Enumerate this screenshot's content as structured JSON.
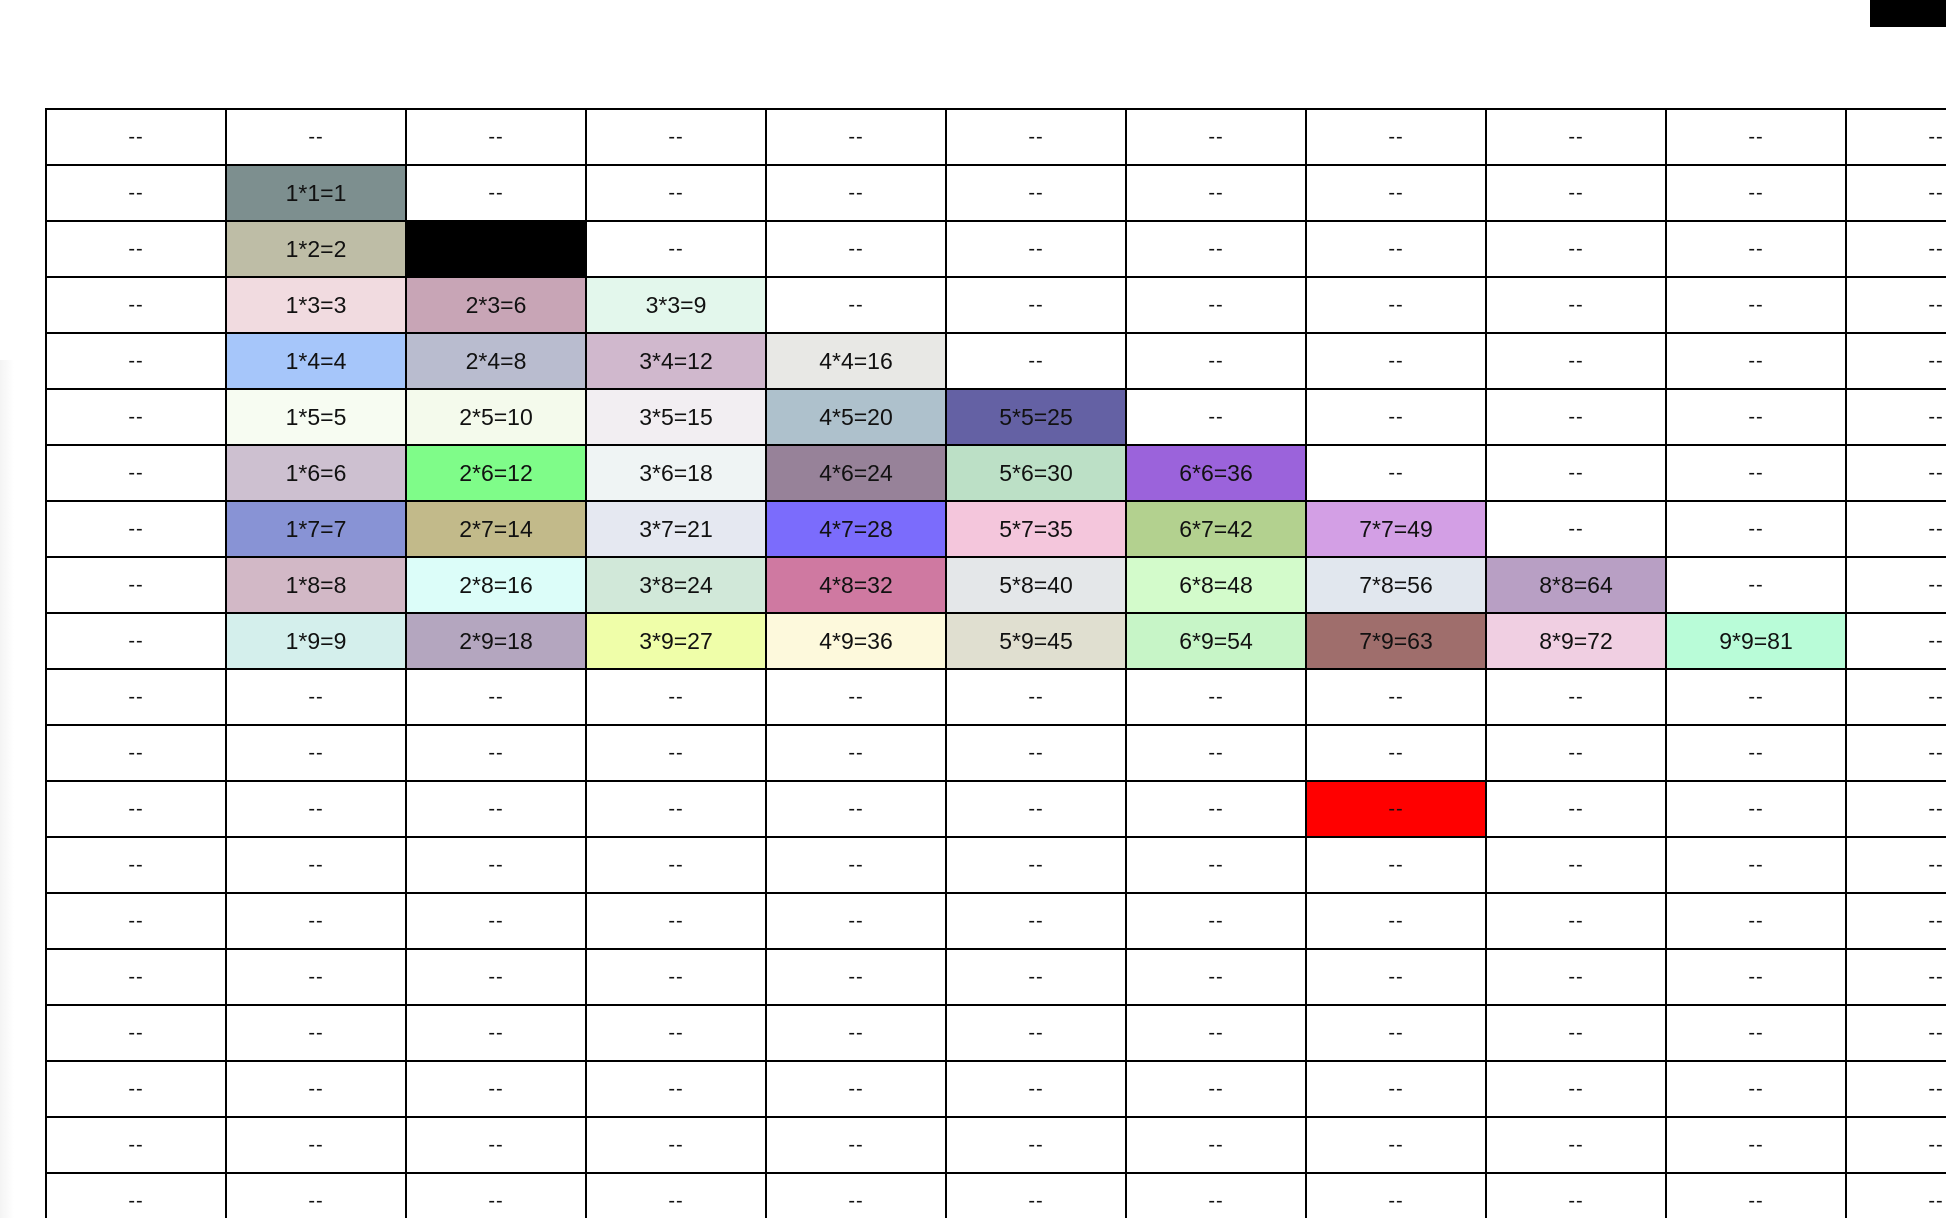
{
  "table": {
    "rows": [
      {
        "cells": [
          {
            "text": "--"
          },
          {
            "text": "--"
          },
          {
            "text": "--"
          },
          {
            "text": "--"
          },
          {
            "text": "--"
          },
          {
            "text": "--"
          },
          {
            "text": "--"
          },
          {
            "text": "--"
          },
          {
            "text": "--"
          },
          {
            "text": "--"
          },
          {
            "text": "--"
          }
        ]
      },
      {
        "cells": [
          {
            "text": "--"
          },
          {
            "text": "1*1=1",
            "color": "#7d8f8f"
          },
          {
            "text": "--"
          },
          {
            "text": "--"
          },
          {
            "text": "--"
          },
          {
            "text": "--"
          },
          {
            "text": "--"
          },
          {
            "text": "--"
          },
          {
            "text": "--"
          },
          {
            "text": "--"
          },
          {
            "text": "--"
          }
        ]
      },
      {
        "cells": [
          {
            "text": "--"
          },
          {
            "text": "1*2=2",
            "color": "#bebda6"
          },
          {
            "text": "",
            "color": "#000000"
          },
          {
            "text": "--"
          },
          {
            "text": "--"
          },
          {
            "text": "--"
          },
          {
            "text": "--"
          },
          {
            "text": "--"
          },
          {
            "text": "--"
          },
          {
            "text": "--"
          },
          {
            "text": "--"
          }
        ]
      },
      {
        "cells": [
          {
            "text": "--"
          },
          {
            "text": "1*3=3",
            "color": "#f1dbe0"
          },
          {
            "text": "2*3=6",
            "color": "#c8a5b6"
          },
          {
            "text": "3*3=9",
            "color": "#e3f7ec"
          },
          {
            "text": "--"
          },
          {
            "text": "--"
          },
          {
            "text": "--"
          },
          {
            "text": "--"
          },
          {
            "text": "--"
          },
          {
            "text": "--"
          },
          {
            "text": "--"
          }
        ]
      },
      {
        "cells": [
          {
            "text": "--"
          },
          {
            "text": "1*4=4",
            "color": "#a6c6fa"
          },
          {
            "text": "2*4=8",
            "color": "#b9bccf"
          },
          {
            "text": "3*4=12",
            "color": "#d0b8cd"
          },
          {
            "text": "4*4=16",
            "color": "#e8e8e5"
          },
          {
            "text": "--"
          },
          {
            "text": "--"
          },
          {
            "text": "--"
          },
          {
            "text": "--"
          },
          {
            "text": "--"
          },
          {
            "text": "--"
          }
        ]
      },
      {
        "cells": [
          {
            "text": "--"
          },
          {
            "text": "1*5=5",
            "color": "#f7fcf2"
          },
          {
            "text": "2*5=10",
            "color": "#f4faec"
          },
          {
            "text": "3*5=15",
            "color": "#f2eef2"
          },
          {
            "text": "4*5=20",
            "color": "#aec1cc"
          },
          {
            "text": "5*5=25",
            "color": "#6461a4"
          },
          {
            "text": "--"
          },
          {
            "text": "--"
          },
          {
            "text": "--"
          },
          {
            "text": "--"
          },
          {
            "text": "--"
          }
        ]
      },
      {
        "cells": [
          {
            "text": "--"
          },
          {
            "text": "1*6=6",
            "color": "#cdc0d0"
          },
          {
            "text": "2*6=12",
            "color": "#7ffc89"
          },
          {
            "text": "3*6=18",
            "color": "#eff4f4"
          },
          {
            "text": "4*6=24",
            "color": "#978299"
          },
          {
            "text": "5*6=30",
            "color": "#bce0c6"
          },
          {
            "text": "6*6=36",
            "color": "#9b63db"
          },
          {
            "text": "--"
          },
          {
            "text": "--"
          },
          {
            "text": "--"
          },
          {
            "text": "--"
          }
        ]
      },
      {
        "cells": [
          {
            "text": "--"
          },
          {
            "text": "1*7=7",
            "color": "#8893d5"
          },
          {
            "text": "2*7=14",
            "color": "#c2ba8a"
          },
          {
            "text": "3*7=21",
            "color": "#e5e8f1"
          },
          {
            "text": "4*7=28",
            "color": "#7b6cfc"
          },
          {
            "text": "5*7=35",
            "color": "#f4c6dc"
          },
          {
            "text": "6*7=42",
            "color": "#b3d18f"
          },
          {
            "text": "7*7=49",
            "color": "#d39fe5"
          },
          {
            "text": "--"
          },
          {
            "text": "--"
          },
          {
            "text": "--"
          }
        ]
      },
      {
        "cells": [
          {
            "text": "--"
          },
          {
            "text": "1*8=8",
            "color": "#d2b8c6"
          },
          {
            "text": "2*8=16",
            "color": "#dcfdf9"
          },
          {
            "text": "3*8=24",
            "color": "#d1e8d9"
          },
          {
            "text": "4*8=32",
            "color": "#cf79a1"
          },
          {
            "text": "5*8=40",
            "color": "#e4e7e9"
          },
          {
            "text": "6*8=48",
            "color": "#d3fbcb"
          },
          {
            "text": "7*8=56",
            "color": "#e1e7ee"
          },
          {
            "text": "8*8=64",
            "color": "#b89fc4"
          },
          {
            "text": "--"
          },
          {
            "text": "--"
          }
        ]
      },
      {
        "cells": [
          {
            "text": "--"
          },
          {
            "text": "1*9=9",
            "color": "#d4efec"
          },
          {
            "text": "2*9=18",
            "color": "#b4a6bf"
          },
          {
            "text": "3*9=27",
            "color": "#effea9"
          },
          {
            "text": "4*9=36",
            "color": "#fdf9dc"
          },
          {
            "text": "5*9=45",
            "color": "#e0dfd0"
          },
          {
            "text": "6*9=54",
            "color": "#c7f5c7"
          },
          {
            "text": "7*9=63",
            "color": "#9f6e6c"
          },
          {
            "text": "8*9=72",
            "color": "#f0cfe2"
          },
          {
            "text": "9*9=81",
            "color": "#b9fcd8"
          },
          {
            "text": "--"
          }
        ]
      },
      {
        "cells": [
          {
            "text": "--"
          },
          {
            "text": "--"
          },
          {
            "text": "--"
          },
          {
            "text": "--"
          },
          {
            "text": "--"
          },
          {
            "text": "--"
          },
          {
            "text": "--"
          },
          {
            "text": "--"
          },
          {
            "text": "--"
          },
          {
            "text": "--"
          },
          {
            "text": "--"
          }
        ]
      },
      {
        "cells": [
          {
            "text": "--"
          },
          {
            "text": "--"
          },
          {
            "text": "--"
          },
          {
            "text": "--"
          },
          {
            "text": "--"
          },
          {
            "text": "--"
          },
          {
            "text": "--"
          },
          {
            "text": "--"
          },
          {
            "text": "--"
          },
          {
            "text": "--"
          },
          {
            "text": "--"
          }
        ]
      },
      {
        "cells": [
          {
            "text": "--"
          },
          {
            "text": "--"
          },
          {
            "text": "--"
          },
          {
            "text": "--"
          },
          {
            "text": "--"
          },
          {
            "text": "--"
          },
          {
            "text": "--"
          },
          {
            "text": "--",
            "color": "#ff0000"
          },
          {
            "text": "--"
          },
          {
            "text": "--"
          },
          {
            "text": "--"
          }
        ]
      },
      {
        "cells": [
          {
            "text": "--"
          },
          {
            "text": "--"
          },
          {
            "text": "--"
          },
          {
            "text": "--"
          },
          {
            "text": "--"
          },
          {
            "text": "--"
          },
          {
            "text": "--"
          },
          {
            "text": "--"
          },
          {
            "text": "--"
          },
          {
            "text": "--"
          },
          {
            "text": "--"
          }
        ]
      },
      {
        "cells": [
          {
            "text": "--"
          },
          {
            "text": "--"
          },
          {
            "text": "--"
          },
          {
            "text": "--"
          },
          {
            "text": "--"
          },
          {
            "text": "--"
          },
          {
            "text": "--"
          },
          {
            "text": "--"
          },
          {
            "text": "--"
          },
          {
            "text": "--"
          },
          {
            "text": "--"
          }
        ]
      },
      {
        "cells": [
          {
            "text": "--"
          },
          {
            "text": "--"
          },
          {
            "text": "--"
          },
          {
            "text": "--"
          },
          {
            "text": "--"
          },
          {
            "text": "--"
          },
          {
            "text": "--"
          },
          {
            "text": "--"
          },
          {
            "text": "--"
          },
          {
            "text": "--"
          },
          {
            "text": "--"
          }
        ]
      },
      {
        "cells": [
          {
            "text": "--"
          },
          {
            "text": "--"
          },
          {
            "text": "--"
          },
          {
            "text": "--"
          },
          {
            "text": "--"
          },
          {
            "text": "--"
          },
          {
            "text": "--"
          },
          {
            "text": "--"
          },
          {
            "text": "--"
          },
          {
            "text": "--"
          },
          {
            "text": "--"
          }
        ]
      },
      {
        "cells": [
          {
            "text": "--"
          },
          {
            "text": "--"
          },
          {
            "text": "--"
          },
          {
            "text": "--"
          },
          {
            "text": "--"
          },
          {
            "text": "--"
          },
          {
            "text": "--"
          },
          {
            "text": "--"
          },
          {
            "text": "--"
          },
          {
            "text": "--"
          },
          {
            "text": "--"
          }
        ]
      },
      {
        "cells": [
          {
            "text": "--"
          },
          {
            "text": "--"
          },
          {
            "text": "--"
          },
          {
            "text": "--"
          },
          {
            "text": "--"
          },
          {
            "text": "--"
          },
          {
            "text": "--"
          },
          {
            "text": "--"
          },
          {
            "text": "--"
          },
          {
            "text": "--"
          },
          {
            "text": "--"
          }
        ]
      },
      {
        "cells": [
          {
            "text": "--"
          },
          {
            "text": "--"
          },
          {
            "text": "--"
          },
          {
            "text": "--"
          },
          {
            "text": "--"
          },
          {
            "text": "--"
          },
          {
            "text": "--"
          },
          {
            "text": "--"
          },
          {
            "text": "--"
          },
          {
            "text": "--"
          },
          {
            "text": "--"
          }
        ]
      }
    ]
  }
}
